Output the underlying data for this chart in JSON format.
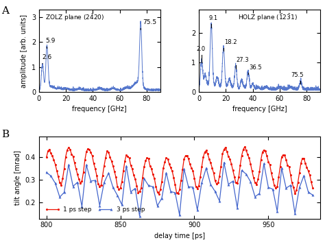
{
  "freq_xlabel": "frequency [GHz]",
  "freq_ylabel": "amplitude [arb. units]",
  "time_xlabel": "delay time [ps]",
  "time_ylabel": "tilt angle [mrad]",
  "zolz_ylim": [
    0,
    3.3
  ],
  "zolz_yticks": [
    0,
    1,
    2,
    3
  ],
  "holz_ylim": [
    0,
    2.8
  ],
  "holz_yticks": [
    0,
    1,
    2
  ],
  "xlim_freq": [
    0,
    90
  ],
  "xticks_freq": [
    0,
    20,
    40,
    60,
    80
  ],
  "line_color": "#5577CC",
  "red_color": "#EE1100",
  "blue_color": "#4466CC",
  "legend_1ps": "1 ps step",
  "legend_3ps": "3 ps step",
  "time_xlim": [
    795,
    985
  ],
  "time_xticks": [
    800,
    850,
    900,
    950
  ],
  "time_ylim": [
    0.13,
    0.49
  ],
  "time_yticks": [
    0.2,
    0.3,
    0.4
  ]
}
